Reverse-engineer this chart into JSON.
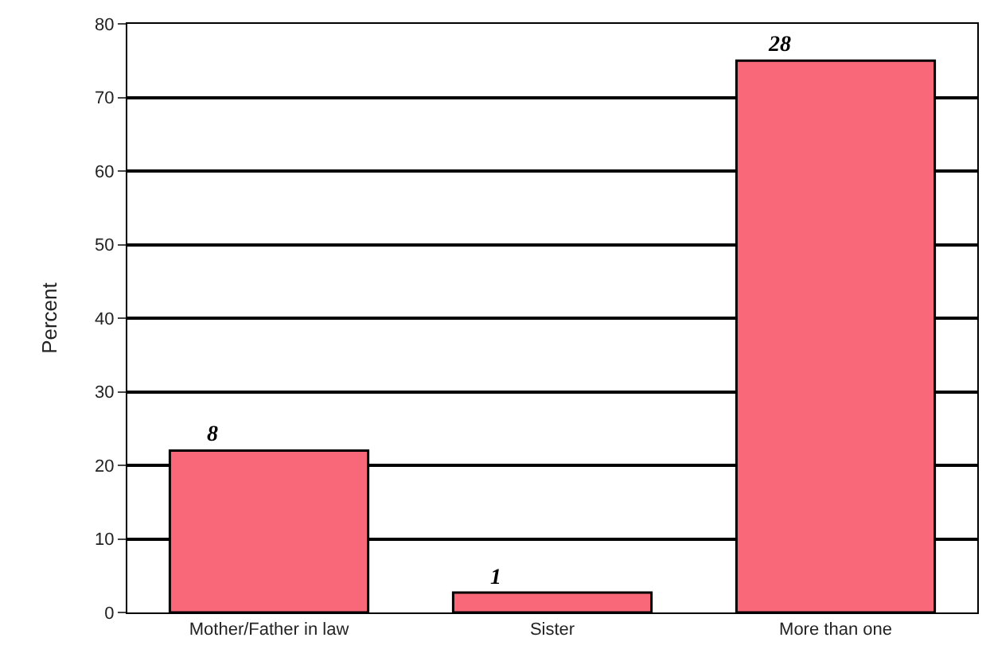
{
  "chart_data": {
    "type": "bar",
    "ylabel": "Percent",
    "categories": [
      "Mother/Father in law",
      "Sister",
      "More than one"
    ],
    "values": [
      22,
      2.7,
      75
    ],
    "color": "#f86878",
    "annotations": [
      {
        "text": "8",
        "x": "Mother/Father in law",
        "y": 22
      },
      {
        "text": "1",
        "x": "Sister",
        "y": 2.7
      },
      {
        "text": "28",
        "x": "More than one",
        "y": 75
      }
    ],
    "ylim": [
      0,
      80
    ],
    "yticks": [
      0,
      10,
      20,
      30,
      40,
      50,
      60,
      70,
      80
    ],
    "grid": "y",
    "legend": false
  }
}
